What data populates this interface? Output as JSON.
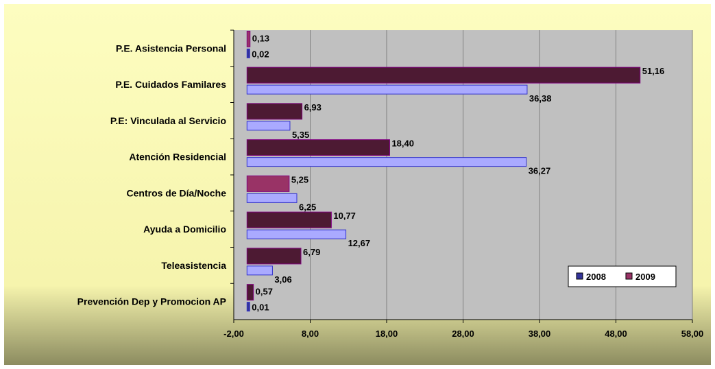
{
  "chart_data": {
    "type": "bar",
    "orientation": "horizontal",
    "categories": [
      "P.E. Asistencia Personal",
      "P.E. Cuidados Familares",
      "P.E: Vinculada al Servicio",
      "Atención Residencial",
      "Centros de Día/Noche",
      "Ayuda a Domicilio",
      "Teleasistencia",
      "Prevención  Dep y Promocion AP"
    ],
    "series": [
      {
        "name": "2008",
        "values": [
          0.02,
          36.38,
          5.35,
          36.27,
          6.25,
          12.67,
          3.06,
          0.01
        ],
        "labels": [
          "0,02",
          "36,38",
          "5,35",
          "36,27",
          "6,25",
          "12,67",
          "3,06",
          "0,01"
        ]
      },
      {
        "name": "2009",
        "values": [
          0.13,
          51.16,
          6.93,
          18.4,
          5.25,
          10.77,
          6.79,
          0.57
        ],
        "labels": [
          "0,13",
          "51,16",
          "6,93",
          "18,40",
          "5,25",
          "10,77",
          "6,79",
          "0,57"
        ]
      }
    ],
    "xlim": [
      -2,
      58
    ],
    "xticks": [
      -2,
      8,
      18,
      28,
      38,
      48,
      58
    ],
    "xtick_labels": [
      "-2,00",
      "8,00",
      "18,00",
      "28,00",
      "38,00",
      "48,00",
      "58,00"
    ],
    "grid": true,
    "legend_position": "bottom-right inside plot",
    "colors": {
      "series_2008": "#aaaaff",
      "series_2008_edge": "#3333cc",
      "series_2008_small": "#333399",
      "series_2009": "#4d1a33",
      "series_2009_light": "#993366",
      "series_2009_edge": "#800080",
      "plot_background": "#c0c0c0",
      "frame_top": "#fdfdc0",
      "frame_bottom": "#8f8f60"
    }
  }
}
